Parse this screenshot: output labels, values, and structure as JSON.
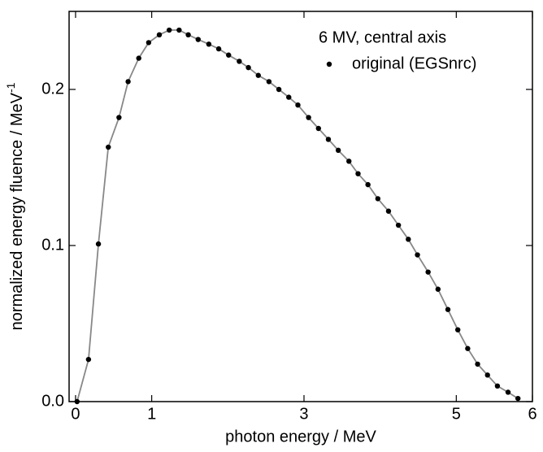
{
  "chart_data": {
    "type": "scatter",
    "xlabel": "photon energy / MeV",
    "ylabel": "normalized energy fluence / MeV",
    "ylabel_sup": "-1",
    "annotation": "6 MV, central axis",
    "xlim": [
      -0.085,
      6.0
    ],
    "ylim": [
      0,
      0.25
    ],
    "xticks": [
      0,
      1,
      3,
      5,
      6
    ],
    "yticks": [
      {
        "value": 0,
        "label": "0.0"
      },
      0.1,
      0.2
    ],
    "grid": false,
    "legend": "upper right",
    "series": [
      {
        "name": "original (EGSnrc)",
        "color": "#000000",
        "line_color": "#888888",
        "x": [
          0.02,
          0.17,
          0.3,
          0.43,
          0.57,
          0.69,
          0.83,
          0.96,
          1.1,
          1.23,
          1.36,
          1.48,
          1.61,
          1.75,
          1.88,
          2.01,
          2.15,
          2.27,
          2.4,
          2.54,
          2.67,
          2.8,
          2.92,
          3.06,
          3.19,
          3.32,
          3.45,
          3.59,
          3.71,
          3.84,
          3.97,
          4.11,
          4.24,
          4.37,
          4.49,
          4.63,
          4.76,
          4.89,
          5.02,
          5.15,
          5.28,
          5.41,
          5.54,
          5.68,
          5.81
        ],
        "values": [
          0,
          0.027,
          0.101,
          0.163,
          0.182,
          0.205,
          0.22,
          0.23,
          0.235,
          0.238,
          0.238,
          0.235,
          0.232,
          0.229,
          0.226,
          0.222,
          0.218,
          0.214,
          0.209,
          0.205,
          0.2,
          0.195,
          0.19,
          0.182,
          0.175,
          0.168,
          0.161,
          0.154,
          0.146,
          0.139,
          0.13,
          0.122,
          0.113,
          0.104,
          0.094,
          0.083,
          0.072,
          0.059,
          0.046,
          0.034,
          0.024,
          0.017,
          0.01,
          0.006,
          0.002
        ]
      }
    ]
  }
}
